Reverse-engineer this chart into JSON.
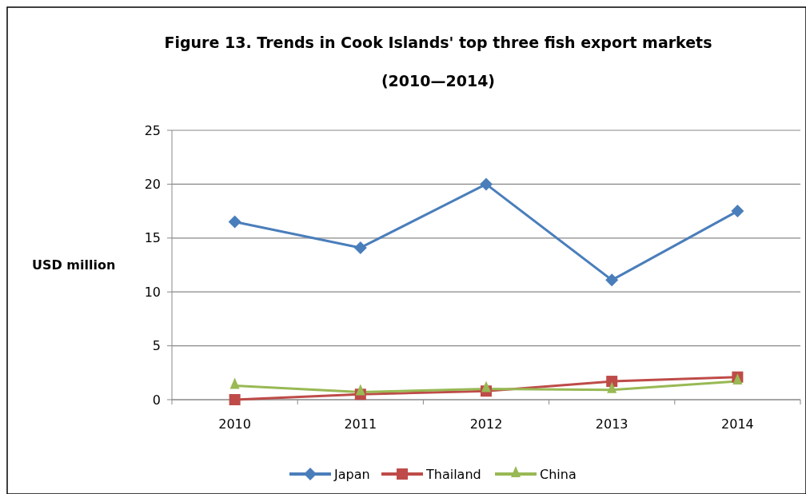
{
  "chart_data": {
    "type": "line",
    "title": "Figure 13. Trends in Cook Islands' top three fish export markets (2010—2014)",
    "ylabel": "USD million",
    "categories": [
      "2010",
      "2011",
      "2012",
      "2013",
      "2014"
    ],
    "series": [
      {
        "name": "Japan",
        "color": "#4a7ebb",
        "marker": "diamond",
        "values": [
          16.5,
          14.1,
          20,
          11.1,
          17.5
        ]
      },
      {
        "name": "Thailand",
        "color": "#be4b48",
        "marker": "square",
        "values": [
          0,
          0.5,
          0.8,
          1.7,
          2.1
        ]
      },
      {
        "name": "China",
        "color": "#98b954",
        "marker": "triangle",
        "values": [
          1.3,
          0.7,
          1.0,
          0.9,
          1.7
        ]
      }
    ],
    "ylim": [
      0,
      25
    ],
    "yticks": [
      0,
      5,
      10,
      15,
      20,
      25
    ],
    "grid": "y",
    "legend": "bottom"
  }
}
